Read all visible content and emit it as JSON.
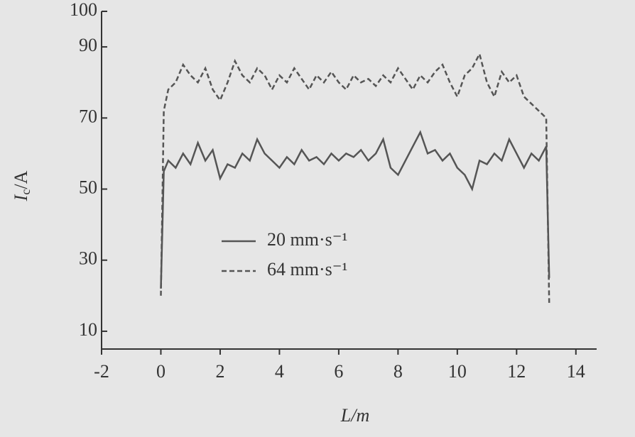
{
  "chart_data": {
    "type": "line",
    "x_label": "L/m",
    "y_label": {
      "symbol": "I",
      "subscript": "c",
      "unit": "/A"
    },
    "x": [
      0,
      0.1,
      0.25,
      0.5,
      0.75,
      1,
      1.25,
      1.5,
      1.75,
      2,
      2.25,
      2.5,
      2.75,
      3,
      3.25,
      3.5,
      3.75,
      4,
      4.25,
      4.5,
      4.75,
      5,
      5.25,
      5.5,
      5.75,
      6,
      6.25,
      6.5,
      6.75,
      7,
      7.25,
      7.5,
      7.75,
      8,
      8.25,
      8.5,
      8.75,
      9,
      9.25,
      9.5,
      9.75,
      10,
      10.25,
      10.5,
      10.75,
      11,
      11.25,
      11.5,
      11.75,
      12,
      12.25,
      12.5,
      12.75,
      13,
      13.1
    ],
    "series": [
      {
        "name": "20 mm·s⁻¹",
        "color": "#555555",
        "dash": "solid",
        "values": [
          22,
          55,
          58,
          56,
          60,
          57,
          63,
          58,
          61,
          53,
          57,
          56,
          60,
          58,
          64,
          60,
          58,
          56,
          59,
          57,
          61,
          58,
          59,
          57,
          60,
          58,
          60,
          59,
          61,
          58,
          60,
          64,
          56,
          54,
          58,
          62,
          66,
          60,
          61,
          58,
          60,
          56,
          54,
          50,
          58,
          57,
          60,
          58,
          64,
          60,
          56,
          60,
          58,
          62,
          25
        ]
      },
      {
        "name": "64 mm·s⁻¹",
        "color": "#555555",
        "dash": "dashed",
        "values": [
          20,
          72,
          78,
          80,
          85,
          82,
          80,
          84,
          78,
          75,
          80,
          86,
          82,
          80,
          84,
          82,
          78,
          82,
          80,
          84,
          81,
          78,
          82,
          80,
          83,
          80,
          78,
          82,
          80,
          81,
          79,
          82,
          80,
          84,
          81,
          78,
          82,
          80,
          83,
          85,
          80,
          76,
          82,
          84,
          88,
          80,
          76,
          83,
          80,
          82,
          76,
          74,
          72,
          70,
          18
        ]
      }
    ],
    "xlim": [
      -2,
      14.7
    ],
    "xticks": [
      -2,
      0,
      2,
      4,
      6,
      8,
      10,
      12,
      14
    ],
    "ylim": [
      5,
      100
    ],
    "yticks": [
      10,
      30,
      50,
      70,
      90,
      100
    ],
    "grid": false
  }
}
